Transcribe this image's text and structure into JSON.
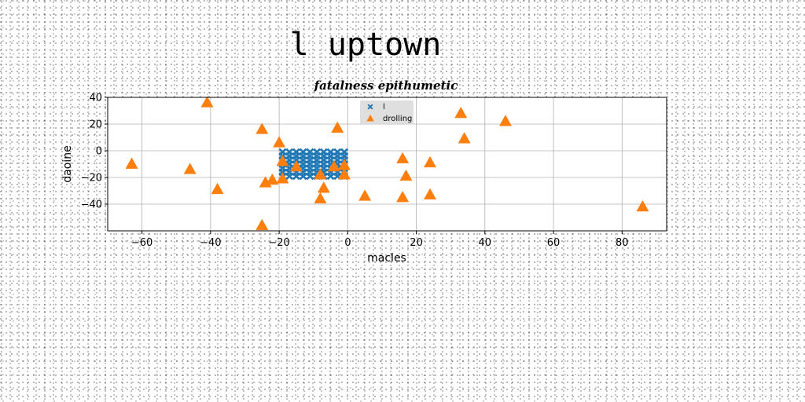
{
  "figure": {
    "title": "l uptown"
  },
  "chart_data": {
    "type": "scatter",
    "title": "fatalness epithumetic",
    "xlabel": "macles",
    "ylabel": "daoine",
    "xlim": [
      -70,
      93
    ],
    "ylim": [
      -60,
      40
    ],
    "xticks": [
      -60,
      -40,
      -20,
      0,
      20,
      40,
      60,
      80
    ],
    "yticks": [
      -40,
      -20,
      0,
      20,
      40
    ],
    "grid": true,
    "legend": "top-center",
    "series": [
      {
        "name": "l",
        "marker": "x-filled",
        "color": "#1f77b4",
        "points": [
          [
            -19,
            -1
          ],
          [
            -19,
            -4
          ],
          [
            -19,
            -7
          ],
          [
            -19,
            -10
          ],
          [
            -19,
            -13
          ],
          [
            -19,
            -16
          ],
          [
            -19,
            -19
          ],
          [
            -17,
            -1
          ],
          [
            -17,
            -4
          ],
          [
            -17,
            -7
          ],
          [
            -17,
            -10
          ],
          [
            -17,
            -13
          ],
          [
            -17,
            -16
          ],
          [
            -17,
            -19
          ],
          [
            -15,
            -1
          ],
          [
            -15,
            -4
          ],
          [
            -15,
            -7
          ],
          [
            -15,
            -10
          ],
          [
            -15,
            -13
          ],
          [
            -15,
            -16
          ],
          [
            -15,
            -19
          ],
          [
            -13,
            -1
          ],
          [
            -13,
            -4
          ],
          [
            -13,
            -7
          ],
          [
            -13,
            -10
          ],
          [
            -13,
            -13
          ],
          [
            -13,
            -16
          ],
          [
            -13,
            -19
          ],
          [
            -11,
            -1
          ],
          [
            -11,
            -4
          ],
          [
            -11,
            -7
          ],
          [
            -11,
            -10
          ],
          [
            -11,
            -13
          ],
          [
            -11,
            -16
          ],
          [
            -11,
            -19
          ],
          [
            -9,
            -1
          ],
          [
            -9,
            -4
          ],
          [
            -9,
            -7
          ],
          [
            -9,
            -10
          ],
          [
            -9,
            -13
          ],
          [
            -9,
            -16
          ],
          [
            -9,
            -19
          ],
          [
            -7,
            -1
          ],
          [
            -7,
            -4
          ],
          [
            -7,
            -7
          ],
          [
            -7,
            -10
          ],
          [
            -7,
            -13
          ],
          [
            -7,
            -16
          ],
          [
            -7,
            -19
          ],
          [
            -5,
            -1
          ],
          [
            -5,
            -4
          ],
          [
            -5,
            -7
          ],
          [
            -5,
            -10
          ],
          [
            -5,
            -13
          ],
          [
            -5,
            -16
          ],
          [
            -5,
            -19
          ],
          [
            -3,
            -1
          ],
          [
            -3,
            -4
          ],
          [
            -3,
            -7
          ],
          [
            -3,
            -10
          ],
          [
            -3,
            -13
          ],
          [
            -3,
            -16
          ],
          [
            -3,
            -19
          ],
          [
            -1,
            -1
          ],
          [
            -1,
            -4
          ],
          [
            -1,
            -7
          ],
          [
            -1,
            -10
          ],
          [
            -1,
            -13
          ],
          [
            -1,
            -16
          ],
          [
            -1,
            -19
          ]
        ]
      },
      {
        "name": "drolling",
        "marker": "triangle",
        "color": "#ff7f0e",
        "points": [
          [
            -63,
            -10
          ],
          [
            -46,
            -14
          ],
          [
            -41,
            36
          ],
          [
            -38,
            -29
          ],
          [
            -25,
            16
          ],
          [
            -24,
            -24
          ],
          [
            -22,
            -22
          ],
          [
            -20,
            6
          ],
          [
            -19,
            -8
          ],
          [
            -19,
            -21
          ],
          [
            -25,
            -56
          ],
          [
            -15,
            -12
          ],
          [
            -8,
            -18
          ],
          [
            -8,
            -36
          ],
          [
            -7,
            -28
          ],
          [
            -4,
            -12
          ],
          [
            -3,
            17
          ],
          [
            -1,
            -11
          ],
          [
            -1,
            -18
          ],
          [
            5,
            -34
          ],
          [
            16,
            -6
          ],
          [
            17,
            -19
          ],
          [
            16,
            -35
          ],
          [
            24,
            -9
          ],
          [
            24,
            -33
          ],
          [
            33,
            28
          ],
          [
            34,
            9
          ],
          [
            46,
            22
          ],
          [
            86,
            -42
          ]
        ]
      }
    ]
  }
}
